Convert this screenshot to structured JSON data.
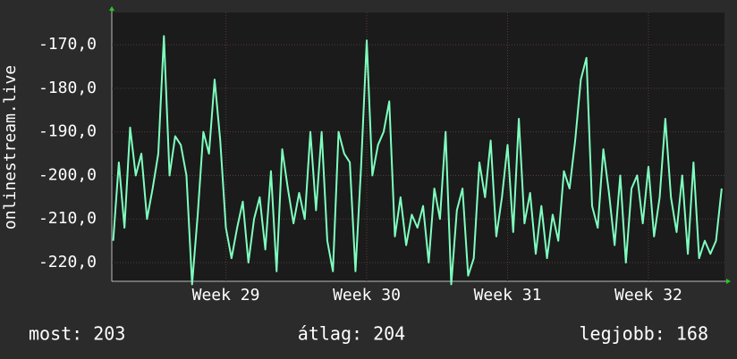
{
  "chart_data": {
    "type": "line",
    "y_label": "onlinestream.live",
    "xlim": [
      28.19,
      32.54
    ],
    "xticks": [
      {
        "value": 29,
        "label": "Week 29"
      },
      {
        "value": 30,
        "label": "Week 30"
      },
      {
        "value": 31,
        "label": "Week 31"
      },
      {
        "value": 32,
        "label": "Week 32"
      }
    ],
    "ylim": [
      -224.3,
      -162.6
    ],
    "yticks": [
      {
        "value": -220,
        "label": "-220,0"
      },
      {
        "value": -210,
        "label": "-210,0"
      },
      {
        "value": -200,
        "label": "-200,0"
      },
      {
        "value": -190,
        "label": "-190,0"
      },
      {
        "value": -180,
        "label": "-180,0"
      },
      {
        "value": -170,
        "label": "-170,0"
      }
    ],
    "grid": true,
    "x": [
      28.2,
      28.24,
      28.28,
      28.32,
      28.36,
      28.4,
      28.44,
      28.48,
      28.52,
      28.56,
      28.6,
      28.64,
      28.68,
      28.72,
      28.76,
      28.8,
      28.84,
      28.88,
      28.92,
      28.96,
      29.0,
      29.04,
      29.08,
      29.12,
      29.16,
      29.2,
      29.24,
      29.28,
      29.32,
      29.36,
      29.4,
      29.44,
      29.48,
      29.52,
      29.56,
      29.6,
      29.64,
      29.68,
      29.72,
      29.76,
      29.8,
      29.84,
      29.88,
      29.92,
      29.96,
      30.0,
      30.04,
      30.08,
      30.12,
      30.16,
      30.2,
      30.24,
      30.28,
      30.32,
      30.36,
      30.4,
      30.44,
      30.48,
      30.52,
      30.56,
      30.6,
      30.64,
      30.68,
      30.72,
      30.76,
      30.8,
      30.84,
      30.88,
      30.92,
      30.96,
      31.0,
      31.04,
      31.08,
      31.12,
      31.16,
      31.2,
      31.24,
      31.28,
      31.32,
      31.36,
      31.4,
      31.44,
      31.48,
      31.52,
      31.56,
      31.6,
      31.64,
      31.68,
      31.72,
      31.76,
      31.8,
      31.84,
      31.88,
      31.92,
      31.96,
      32.0,
      32.04,
      32.08,
      32.12,
      32.16,
      32.2,
      32.24,
      32.28,
      32.32,
      32.36,
      32.4,
      32.44,
      32.48,
      32.52
    ],
    "series": [
      {
        "color": "#7fffbf",
        "values": [
          -215,
          -197,
          -212,
          -189,
          -200,
          -195,
          -210,
          -203,
          -195,
          -168,
          -200,
          -191,
          -193,
          -200,
          -225,
          -209,
          -190,
          -195,
          -178,
          -192,
          -212,
          -219,
          -212,
          -206,
          -220,
          -210,
          -205,
          -217,
          -199,
          -222,
          -194,
          -203,
          -211,
          -204,
          -210,
          -190,
          -208,
          -190,
          -215,
          -222,
          -190,
          -195,
          -197,
          -222,
          -198,
          -169,
          -200,
          -193,
          -190,
          -183,
          -214,
          -205,
          -216,
          -209,
          -212,
          -207,
          -220,
          -203,
          -210,
          -190,
          -225,
          -208,
          -203,
          -223,
          -219,
          -197,
          -205,
          -192,
          -214,
          -205,
          -193,
          -213,
          -187,
          -211,
          -204,
          -218,
          -207,
          -219,
          -209,
          -215,
          -199,
          -203,
          -192,
          -178,
          -173,
          -207,
          -212,
          -194,
          -204,
          -216,
          -200,
          -220,
          -203,
          -200,
          -211,
          -198,
          -214,
          -205,
          -187,
          -205,
          -213,
          -200,
          -218,
          -197,
          -219,
          -215,
          -218,
          -215,
          -203
        ]
      }
    ],
    "footer": [
      "most: 203",
      "átlag: 204",
      "legjobb: 168"
    ]
  }
}
